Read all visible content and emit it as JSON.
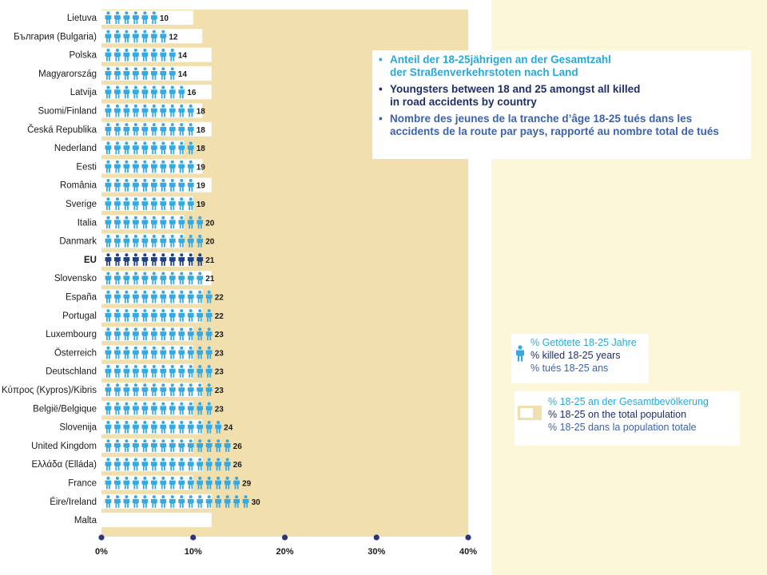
{
  "colors": {
    "icon": "#37a9e0",
    "icon_eu": "#24417f",
    "plot_background": "#f1e0ae",
    "population_bar": "#ffffff",
    "axis_dot": "#2c3580",
    "eu_label": "#2a53a6"
  },
  "chart_data": {
    "type": "bar",
    "xlim": [
      0,
      40
    ],
    "x_ticks": [
      "0%",
      "10%",
      "20%",
      "30%",
      "40%"
    ],
    "unit": "%",
    "series": [
      {
        "name": "% killed 18-25 years",
        "values": [
          10,
          12,
          14,
          14,
          16,
          18,
          18,
          18,
          19,
          19,
          19,
          20,
          20,
          21,
          21,
          22,
          22,
          23,
          23,
          23,
          23,
          23,
          24,
          26,
          26,
          29,
          30,
          null
        ]
      },
      {
        "name": "% 18-25 on the total population",
        "values": [
          10,
          11,
          12,
          12,
          12,
          11,
          12,
          9,
          11,
          12,
          10,
          9,
          9,
          10,
          12,
          11,
          11,
          10,
          10,
          10,
          11,
          10,
          11,
          10,
          11,
          10,
          12,
          12
        ]
      }
    ],
    "categories": [
      "Lietuva",
      "България (Bulgaria)",
      "Polska",
      "Magyarország",
      "Latvija",
      "Suomi/Finland",
      "Česká Republika",
      "Nederland",
      "Eesti",
      "România",
      "Sverige",
      "Italia",
      "Danmark",
      "EU",
      "Slovensko",
      "España",
      "Portugal",
      "Luxembourg",
      "Österreich",
      "Deutschland",
      "Κύπρος (Kypros)/Kibris",
      "België/Belgique",
      "Slovenija",
      "United Kingdom",
      "Ελλάδα (Elláda)",
      "France",
      "Éire/Ireland",
      "Malta"
    ],
    "value_labels": [
      "10",
      "12",
      "14",
      "14",
      "16",
      "18",
      "18",
      "18",
      "19",
      "19",
      "19",
      "20",
      "20",
      "21",
      "21",
      "22",
      "22",
      "23",
      "23",
      "23",
      "23",
      "23",
      "24",
      "26",
      "26",
      "29",
      "30",
      ""
    ],
    "highlight_category": "EU"
  },
  "title_box": {
    "lines": [
      {
        "text": "Anteil der 18-25jährigen an der Gesamtzahl\nder Straßenverkehrstoten nach Land",
        "color": "cyan"
      },
      {
        "text": "Youngsters between 18 and 25 amongst all killed\nin road accidents by country",
        "color": "navy"
      },
      {
        "text": "Nombre des jeunes de la tranche d’âge 18-25 tués dans les\naccidents de la route par pays, rapporté au nombre total de tués",
        "color": "blue"
      }
    ],
    "bullet": "•"
  },
  "legend_killed": {
    "icon": "person-icon",
    "de": "% Getötete 18-25 Jahre",
    "en": "% killed 18-25 years",
    "fr": "% tués 18-25 ans"
  },
  "legend_population": {
    "de": "% 18-25 an der Gesamtbevölkerung",
    "en": "% 18-25 on the total population",
    "fr": "% 18-25 dans la population totale"
  }
}
